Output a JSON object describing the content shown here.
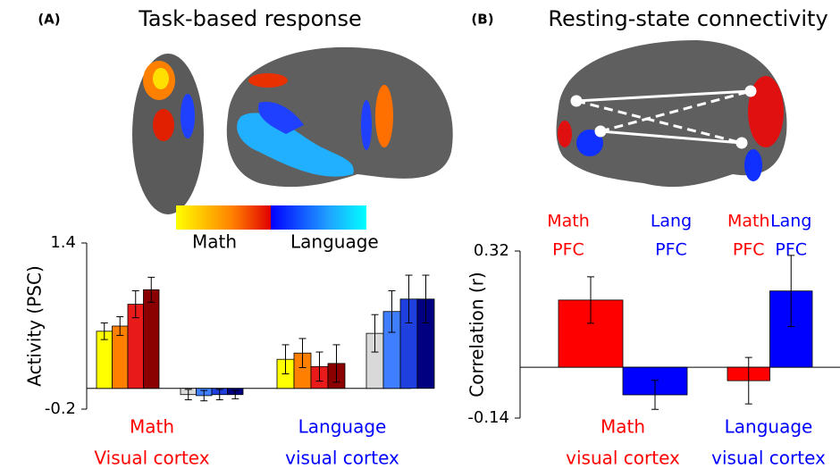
{
  "chart_data": [
    {
      "type": "bar",
      "panel": "(A)",
      "title": "Task-based response",
      "colorbar_labels": [
        "Math",
        "Language"
      ],
      "ylabel": "Activity (PSC)",
      "ylim": [
        -0.2,
        1.4
      ],
      "yticks": [
        -0.2,
        1.4
      ],
      "categories": [
        [
          "Math",
          "Visual cortex"
        ],
        [
          "Language",
          "visual cortex"
        ]
      ],
      "category_colors": [
        "#ff0000",
        "#0000ff"
      ],
      "series": [
        {
          "color": "#ffff00",
          "values": [
            0.55,
            0.28
          ],
          "errors": [
            0.08,
            0.14
          ]
        },
        {
          "color": "#ff8000",
          "values": [
            0.6,
            0.34
          ],
          "errors": [
            0.09,
            0.14
          ]
        },
        {
          "color": "#e81a1a",
          "values": [
            0.81,
            0.21
          ],
          "errors": [
            0.13,
            0.14
          ]
        },
        {
          "color": "#8b0000",
          "values": [
            0.95,
            0.24
          ],
          "errors": [
            0.12,
            0.18
          ]
        },
        {
          "color": "#d9d9d9",
          "values": [
            -0.06,
            0.53
          ],
          "errors": [
            0.05,
            0.18
          ]
        },
        {
          "color": "#3f7fff",
          "values": [
            -0.07,
            0.74
          ],
          "errors": [
            0.05,
            0.2
          ]
        },
        {
          "color": "#1f3fdf",
          "values": [
            -0.06,
            0.86
          ],
          "errors": [
            0.05,
            0.23
          ]
        },
        {
          "color": "#000080",
          "values": [
            -0.06,
            0.86
          ],
          "errors": [
            0.04,
            0.23
          ]
        }
      ]
    },
    {
      "type": "bar",
      "panel": "(B)",
      "title": "Resting-state connectivity",
      "ylabel": "Correlation (r)",
      "ylim": [
        -0.14,
        0.32
      ],
      "yticks": [
        -0.14,
        0.32
      ],
      "categories": [
        [
          "Math",
          "visual cortex"
        ],
        [
          "Language",
          "visual cortex"
        ]
      ],
      "category_colors": [
        "#ff0000",
        "#0000ff"
      ],
      "series": [
        {
          "label": [
            "Math",
            "PFC"
          ],
          "color": "#ff0000",
          "values": [
            0.185,
            -0.037
          ],
          "errors": [
            0.064,
            0.064
          ]
        },
        {
          "label": [
            "Lang",
            "PFC"
          ],
          "color": "#0000ff",
          "values": [
            -0.076,
            0.21
          ],
          "errors": [
            0.04,
            0.098
          ]
        }
      ]
    }
  ]
}
